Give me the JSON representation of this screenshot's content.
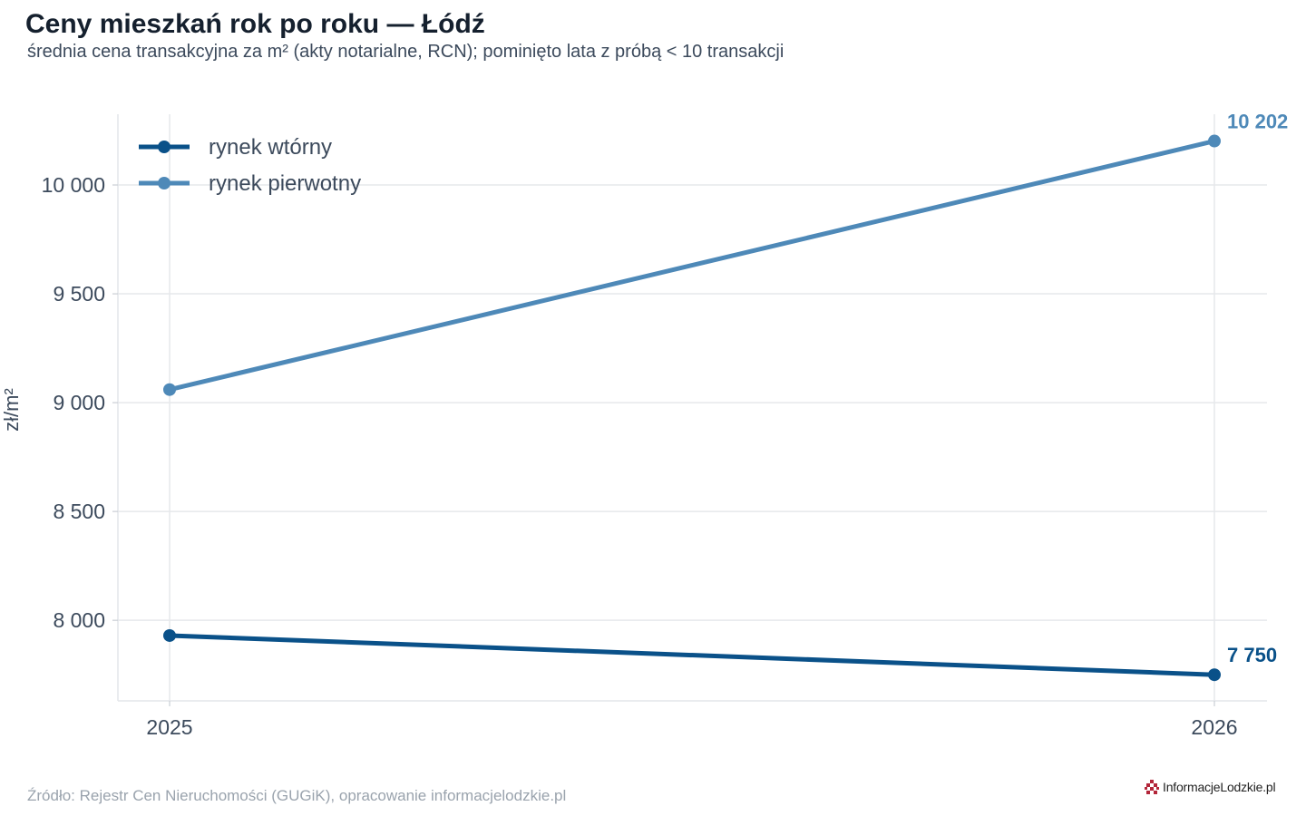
{
  "title": "Ceny mieszkań rok po roku — Łódź",
  "subtitle": "średnia cena transakcyjna za m² (akty notarialne, RCN); pominięto lata z próbą < 10 transakcji",
  "source": "Źródło: Rejestr Cen Nieruchomości (GUGiK), opracowanie informacjelodzkie.pl",
  "logo_text": "InformacjeLodzkie.pl",
  "chart_data": {
    "type": "line",
    "x": [
      2025,
      2026
    ],
    "xticks": [
      "2025",
      "2026"
    ],
    "ylabel": "zł/m²",
    "yticks": [
      8000,
      8500,
      9000,
      9500,
      10000
    ],
    "ytick_labels": [
      "8 000",
      "8 500",
      "9 000",
      "9 500",
      "10 000"
    ],
    "ylim": [
      7630,
      10325
    ],
    "grid": true,
    "legend": "top-left",
    "series": [
      {
        "name": "rynek wtórny",
        "values": [
          7930,
          7750
        ],
        "color": "#0a5189",
        "end_label": "7 750"
      },
      {
        "name": "rynek pierwotny",
        "values": [
          9060,
          10202
        ],
        "color": "#4e89b8",
        "end_label": "10 202"
      }
    ]
  }
}
